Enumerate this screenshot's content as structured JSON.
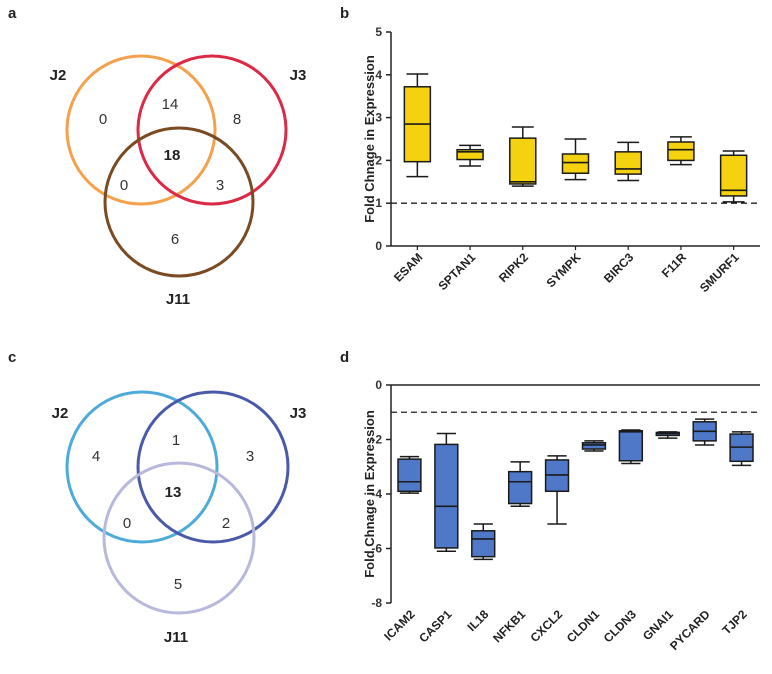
{
  "panels": {
    "a": "a",
    "b": "b",
    "c": "c",
    "d": "d"
  },
  "venn_top": {
    "colors": {
      "j2": "#f4a14e",
      "j3": "#dc2a46",
      "j11": "#7a4a22"
    },
    "labels": {
      "j2": "J2",
      "j3": "J3",
      "j11": "J11"
    },
    "regions": {
      "j2_only": "0",
      "j2_j3": "14",
      "j3_only": "8",
      "all": "18",
      "j2_j11": "0",
      "j3_j11": "3",
      "j11_only": "6"
    }
  },
  "venn_bottom": {
    "colors": {
      "j2": "#4eaad8",
      "j3": "#4b5aa8",
      "j11": "#b8b8dc"
    },
    "labels": {
      "j2": "J2",
      "j3": "J3",
      "j11": "J11"
    },
    "regions": {
      "j2_only": "4",
      "j2_j3": "1",
      "j3_only": "3",
      "all": "13",
      "j2_j11": "0",
      "j3_j11": "2",
      "j11_only": "5"
    }
  },
  "chart_data": [
    {
      "id": "b",
      "type": "box",
      "ylabel": "Fold Chnage in Expression",
      "ylim": [
        0,
        5
      ],
      "yticks": [
        "0",
        "1",
        "2",
        "3",
        "4",
        "5"
      ],
      "reference_line": 1,
      "fill_color": "#f5d20f",
      "categories": [
        "ESAM",
        "SPTAN1",
        "RIPK2",
        "SYMPK",
        "BIRC3",
        "F11R",
        "SMURF1"
      ],
      "boxes": [
        {
          "min": 1.62,
          "q1": 1.97,
          "median": 2.85,
          "q3": 3.72,
          "max": 4.02
        },
        {
          "min": 1.87,
          "q1": 2.02,
          "median": 2.2,
          "q3": 2.25,
          "max": 2.35
        },
        {
          "min": 1.4,
          "q1": 1.45,
          "median": 1.5,
          "q3": 2.52,
          "max": 2.78
        },
        {
          "min": 1.55,
          "q1": 1.7,
          "median": 1.95,
          "q3": 2.15,
          "max": 2.5
        },
        {
          "min": 1.53,
          "q1": 1.68,
          "median": 1.8,
          "q3": 2.2,
          "max": 2.42
        },
        {
          "min": 1.9,
          "q1": 2.0,
          "median": 2.25,
          "q3": 2.43,
          "max": 2.55
        },
        {
          "min": 1.03,
          "q1": 1.17,
          "median": 1.3,
          "q3": 2.12,
          "max": 2.22
        }
      ]
    },
    {
      "id": "d",
      "type": "box",
      "ylabel": "Fold Chnage in Expression",
      "ylim": [
        -8,
        0
      ],
      "yticks": [
        "-8",
        "-6",
        "-4",
        "-2",
        "0"
      ],
      "reference_line": -1,
      "fill_color": "#4f78c8",
      "categories": [
        "ICAM2",
        "CASP1",
        "IL18",
        "NFKB1",
        "CXCL2",
        "CLDN1",
        "CLDN3",
        "GNAI1",
        "PYCARD",
        "TJP2"
      ],
      "boxes": [
        {
          "min": -3.97,
          "q1": -3.9,
          "median": -3.55,
          "q3": -2.72,
          "max": -2.63
        },
        {
          "min": -6.1,
          "q1": -5.98,
          "median": -4.45,
          "q3": -2.18,
          "max": -1.78
        },
        {
          "min": -6.4,
          "q1": -6.3,
          "median": -5.65,
          "q3": -5.35,
          "max": -5.1
        },
        {
          "min": -4.45,
          "q1": -4.35,
          "median": -3.55,
          "q3": -3.18,
          "max": -2.82
        },
        {
          "min": -5.1,
          "q1": -3.9,
          "median": -3.3,
          "q3": -2.75,
          "max": -2.6
        },
        {
          "min": -2.42,
          "q1": -2.35,
          "median": -2.2,
          "q3": -2.12,
          "max": -2.05
        },
        {
          "min": -2.88,
          "q1": -2.78,
          "median": -1.72,
          "q3": -1.68,
          "max": -1.65
        },
        {
          "min": -1.95,
          "q1": -1.85,
          "median": -1.78,
          "q3": -1.74,
          "max": -1.72
        },
        {
          "min": -2.2,
          "q1": -2.05,
          "median": -1.7,
          "q3": -1.35,
          "max": -1.25
        },
        {
          "min": -2.95,
          "q1": -2.8,
          "median": -2.28,
          "q3": -1.8,
          "max": -1.72
        }
      ]
    }
  ]
}
